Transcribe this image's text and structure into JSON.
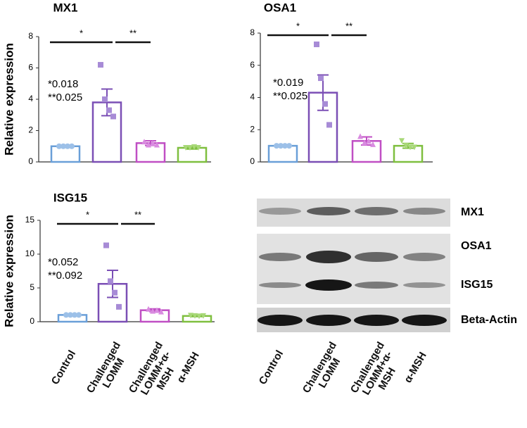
{
  "chart_data": [
    {
      "type": "bar",
      "title": "MX1",
      "y_label": "Relative expression",
      "categories": [
        null,
        null,
        null,
        null
      ],
      "values": [
        1.0,
        3.8,
        1.2,
        0.9
      ],
      "errors": [
        0.05,
        0.85,
        0.15,
        0.08
      ],
      "points": [
        [
          1.0,
          1.0,
          1.0,
          1.0
        ],
        [
          6.2,
          4.0,
          3.3,
          2.9
        ],
        [
          1.3,
          1.1,
          1.2,
          1.1
        ],
        [
          0.9,
          0.9,
          0.95,
          0.9
        ]
      ],
      "colors": [
        "#6a9fd8",
        "#7b4fb5",
        "#c04fc4",
        "#7fbf3f"
      ],
      "ylim": [
        0,
        8
      ],
      "yticks": [
        0,
        2,
        4,
        6,
        8
      ],
      "significance": [
        "*",
        "**"
      ],
      "annotation": [
        "*0.018",
        "**0.025"
      ]
    },
    {
      "type": "bar",
      "title": "OSA1",
      "categories": [
        null,
        null,
        null,
        null
      ],
      "values": [
        1.0,
        4.3,
        1.3,
        1.0
      ],
      "errors": [
        0.05,
        1.1,
        0.25,
        0.15
      ],
      "points": [
        [
          1.0,
          1.0,
          1.0,
          1.0
        ],
        [
          7.3,
          5.2,
          3.6,
          2.3
        ],
        [
          1.6,
          1.2,
          1.3,
          1.1
        ],
        [
          1.3,
          1.0,
          0.9,
          0.9
        ]
      ],
      "colors": [
        "#6a9fd8",
        "#7b4fb5",
        "#c04fc4",
        "#7fbf3f"
      ],
      "ylim": [
        0,
        8
      ],
      "yticks": [
        0,
        2,
        4,
        6,
        8
      ],
      "significance": [
        "*",
        "**"
      ],
      "annotation": [
        "*0.019",
        "**0.025"
      ]
    },
    {
      "type": "bar",
      "title": "ISG15",
      "y_label": "Relative expression",
      "categories": [
        "Control",
        "Challenged LOMM",
        "Challenged LOMM+α-MSH",
        "α-MSH"
      ],
      "values": [
        1.0,
        5.6,
        1.7,
        0.85
      ],
      "errors": [
        0.05,
        2.0,
        0.2,
        0.1
      ],
      "points": [
        [
          1.0,
          1.0,
          1.0,
          1.0
        ],
        [
          11.3,
          6.0,
          4.3,
          2.2
        ],
        [
          1.9,
          1.6,
          1.7,
          1.5
        ],
        [
          0.9,
          0.85,
          0.8,
          0.85
        ]
      ],
      "colors": [
        "#6a9fd8",
        "#7b4fb5",
        "#c04fc4",
        "#7fbf3f"
      ],
      "ylim": [
        0,
        15
      ],
      "yticks": [
        0,
        5,
        10,
        15
      ],
      "significance": [
        "*",
        "**"
      ],
      "annotation": [
        "*0.052",
        "**0.092"
      ]
    }
  ],
  "blot": {
    "rows": [
      "MX1",
      "OSA1",
      "ISG15",
      "Beta-Actin"
    ],
    "lanes": [
      "Control",
      "Challenged LOMM",
      "Challenged LOMM+α-MSH",
      "α-MSH"
    ]
  }
}
